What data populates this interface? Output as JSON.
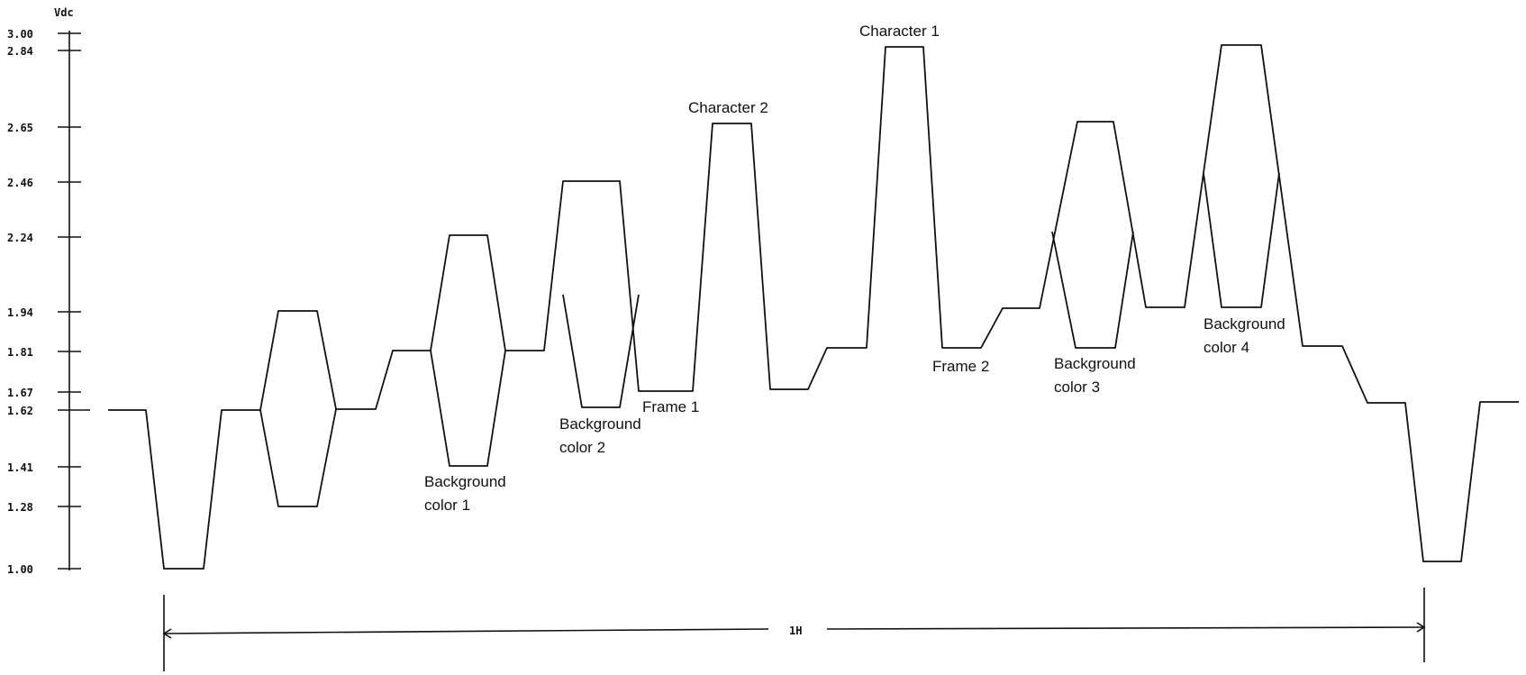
{
  "axis": {
    "unit": "Vdc",
    "ticks": [
      {
        "value": 3.0,
        "label": "3.00"
      },
      {
        "value": 2.84,
        "label": "2.84"
      },
      {
        "value": 2.65,
        "label": "2.65"
      },
      {
        "value": 2.46,
        "label": "2.46"
      },
      {
        "value": 2.24,
        "label": "2.24"
      },
      {
        "value": 1.94,
        "label": "1.94"
      },
      {
        "value": 1.81,
        "label": "1.81"
      },
      {
        "value": 1.67,
        "label": "1.67"
      },
      {
        "value": 1.62,
        "label": "1.62"
      },
      {
        "value": 1.41,
        "label": "1.41"
      },
      {
        "value": 1.28,
        "label": "1.28"
      },
      {
        "value": 1.0,
        "label": "1.00"
      }
    ]
  },
  "annotations": {
    "character_1": "Character 1",
    "character_2": "Character 2",
    "frame_1": "Frame 1",
    "frame_2": "Frame 2",
    "background_color_1": [
      "Background",
      "color 1"
    ],
    "background_color_2": [
      "Background",
      "color 2"
    ],
    "background_color_3": [
      "Background",
      "color 3"
    ],
    "background_color_4": [
      "Background",
      "color 4"
    ]
  },
  "span": {
    "label": "1H"
  }
}
